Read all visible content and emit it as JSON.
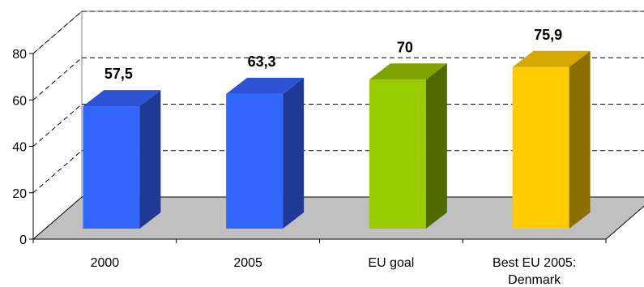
{
  "chart_data": {
    "type": "bar",
    "title": "",
    "xlabel": "",
    "ylabel": "",
    "ylim": [
      0,
      80
    ],
    "yticks": [
      "0",
      "20",
      "40",
      "60",
      "80"
    ],
    "grid": true,
    "legend": "none",
    "categories": [
      "2000",
      "2005",
      "EU goal",
      "Best EU 2005: Denmark"
    ],
    "category_lines": [
      [
        "2000"
      ],
      [
        "2005"
      ],
      [
        "EU goal"
      ],
      [
        "Best EU 2005:",
        "Denmark"
      ]
    ],
    "values": [
      57.5,
      63.3,
      70,
      75.9
    ],
    "value_labels": [
      "57,5",
      "63,3",
      "70",
      "75,9"
    ],
    "colors": [
      {
        "front": "#3366FF",
        "side": "#1F3A94",
        "top": "#2C52D6"
      },
      {
        "front": "#3366FF",
        "side": "#1F3A94",
        "top": "#2C52D6"
      },
      {
        "front": "#99CC00",
        "side": "#4F6B00",
        "top": "#7FA300"
      },
      {
        "front": "#FFCC00",
        "side": "#8C6D00",
        "top": "#D9A800"
      }
    ],
    "floor_color": "#C0C0C0",
    "wall_color": "#FFFFFF"
  }
}
